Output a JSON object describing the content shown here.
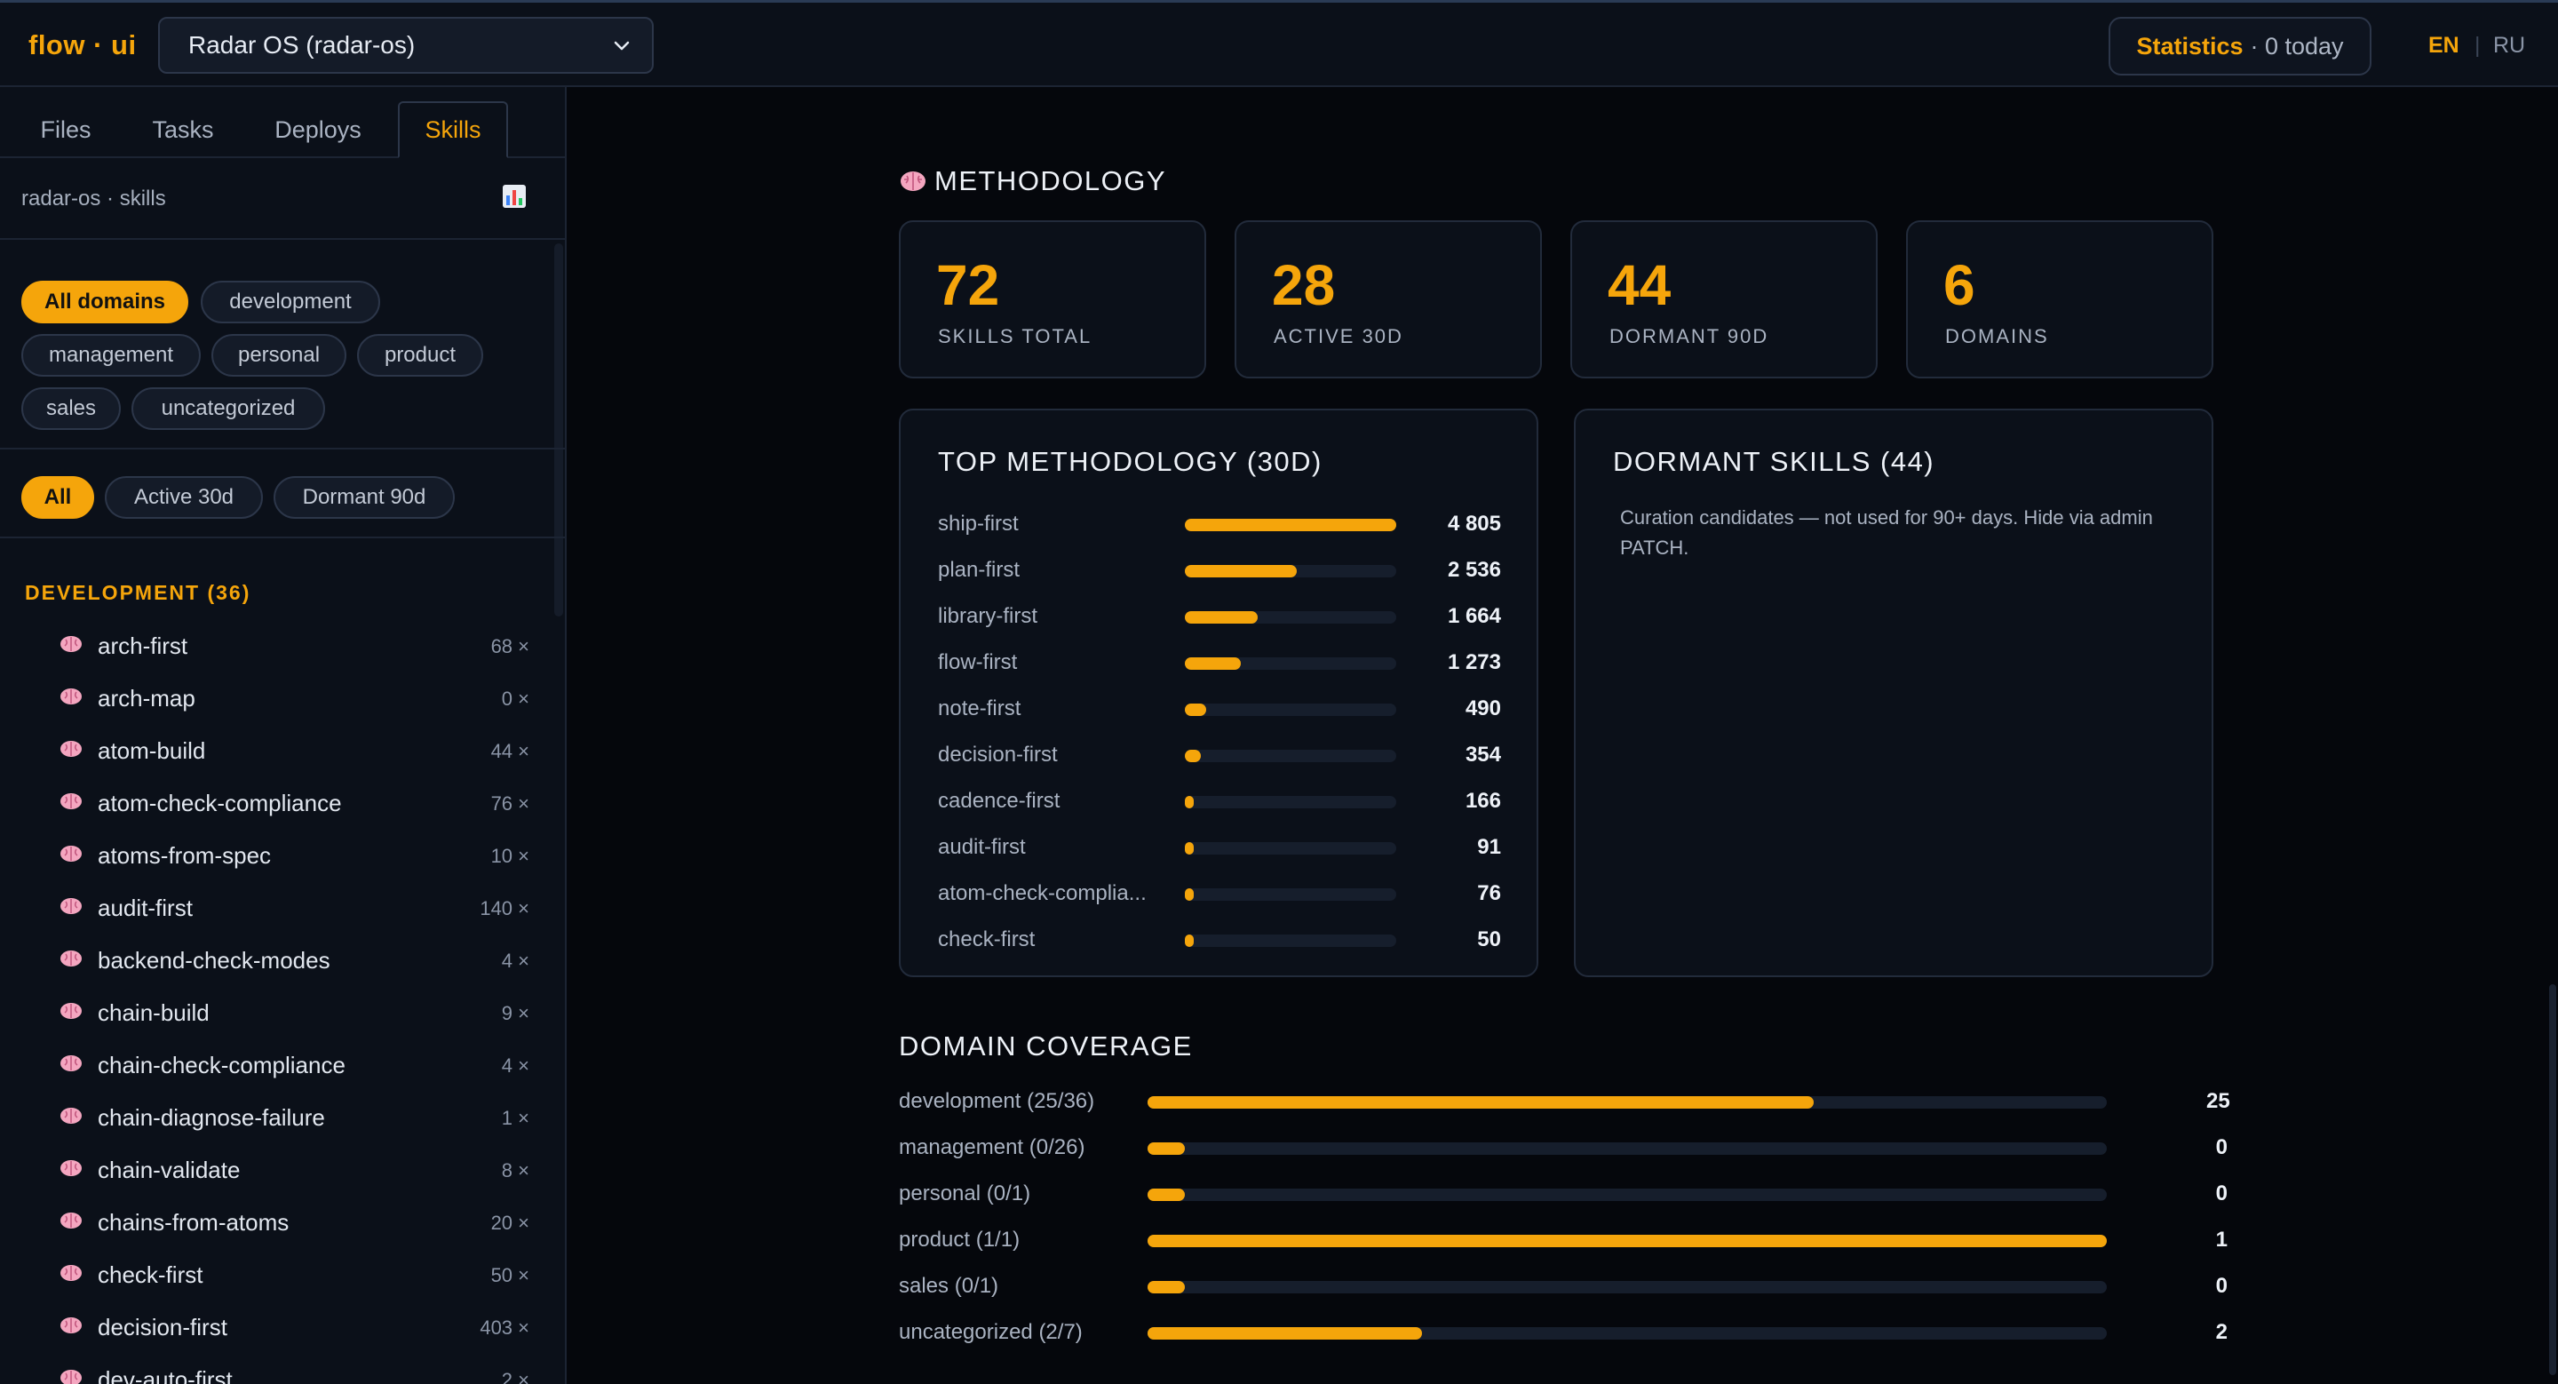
{
  "app": {
    "logo": "flow · ui",
    "project": "Radar OS (radar-os)",
    "stats_label": "Statistics",
    "stats_sub": "· 0 today",
    "lang_en": "EN",
    "lang_sep": "|",
    "lang_ru": "RU"
  },
  "sidebar": {
    "tabs": [
      "Files",
      "Tasks",
      "Deploys",
      "Skills"
    ],
    "active_tab": "Skills",
    "breadcrumb": "radar-os · skills",
    "chart_icon": "bar-chart-icon",
    "domain_chips": [
      "All domains",
      "development",
      "management",
      "personal",
      "product",
      "sales",
      "uncategorized"
    ],
    "status_chips": [
      "All",
      "Active 30d",
      "Dormant 90d"
    ],
    "group_title": "DEVELOPMENT (36)",
    "skills": [
      {
        "name": "arch-first",
        "count": "68 ×"
      },
      {
        "name": "arch-map",
        "count": "0 ×"
      },
      {
        "name": "atom-build",
        "count": "44 ×"
      },
      {
        "name": "atom-check-compliance",
        "count": "76 ×"
      },
      {
        "name": "atoms-from-spec",
        "count": "10 ×"
      },
      {
        "name": "audit-first",
        "count": "140 ×"
      },
      {
        "name": "backend-check-modes",
        "count": "4 ×"
      },
      {
        "name": "chain-build",
        "count": "9 ×"
      },
      {
        "name": "chain-check-compliance",
        "count": "4 ×"
      },
      {
        "name": "chain-diagnose-failure",
        "count": "1 ×"
      },
      {
        "name": "chain-validate",
        "count": "8 ×"
      },
      {
        "name": "chains-from-atoms",
        "count": "20 ×"
      },
      {
        "name": "check-first",
        "count": "50 ×"
      },
      {
        "name": "decision-first",
        "count": "403 ×"
      },
      {
        "name": "dev-auto-first",
        "count": "2 ×"
      }
    ]
  },
  "main": {
    "section_title": "METHODOLOGY",
    "section_icon": "brain-icon",
    "kpis": [
      {
        "value": "72",
        "label": "SKILLS TOTAL"
      },
      {
        "value": "28",
        "label": "ACTIVE 30D"
      },
      {
        "value": "44",
        "label": "DORMANT 90D"
      },
      {
        "value": "6",
        "label": "DOMAINS"
      }
    ],
    "top_title": "TOP METHODOLOGY (30D)",
    "top_items": [
      {
        "name": "ship-first",
        "value": 4805,
        "display": "4 805"
      },
      {
        "name": "plan-first",
        "value": 2536,
        "display": "2 536"
      },
      {
        "name": "library-first",
        "value": 1664,
        "display": "1 664"
      },
      {
        "name": "flow-first",
        "value": 1273,
        "display": "1 273"
      },
      {
        "name": "note-first",
        "value": 490,
        "display": "490"
      },
      {
        "name": "decision-first",
        "value": 354,
        "display": "354"
      },
      {
        "name": "cadence-first",
        "value": 166,
        "display": "166"
      },
      {
        "name": "audit-first",
        "value": 91,
        "display": "91"
      },
      {
        "name": "atom-check-complia...",
        "value": 76,
        "display": "76"
      },
      {
        "name": "check-first",
        "value": 50,
        "display": "50"
      }
    ],
    "dormant_title": "DORMANT SKILLS (44)",
    "dormant_desc": "Curation candidates — not used for 90+ days. Hide via admin PATCH.",
    "coverage_title": "DOMAIN COVERAGE",
    "coverage": [
      {
        "label": "development (25/36)",
        "value": 25,
        "total": 36,
        "display": "25"
      },
      {
        "label": "management (0/26)",
        "value": 0,
        "total": 26,
        "display": "0"
      },
      {
        "label": "personal (0/1)",
        "value": 0,
        "total": 1,
        "display": "0"
      },
      {
        "label": "product (1/1)",
        "value": 1,
        "total": 1,
        "display": "1"
      },
      {
        "label": "sales (0/1)",
        "value": 0,
        "total": 1,
        "display": "0"
      },
      {
        "label": "uncategorized (2/7)",
        "value": 2,
        "total": 7,
        "display": "2"
      }
    ],
    "accent_color": "#f5a50b"
  }
}
